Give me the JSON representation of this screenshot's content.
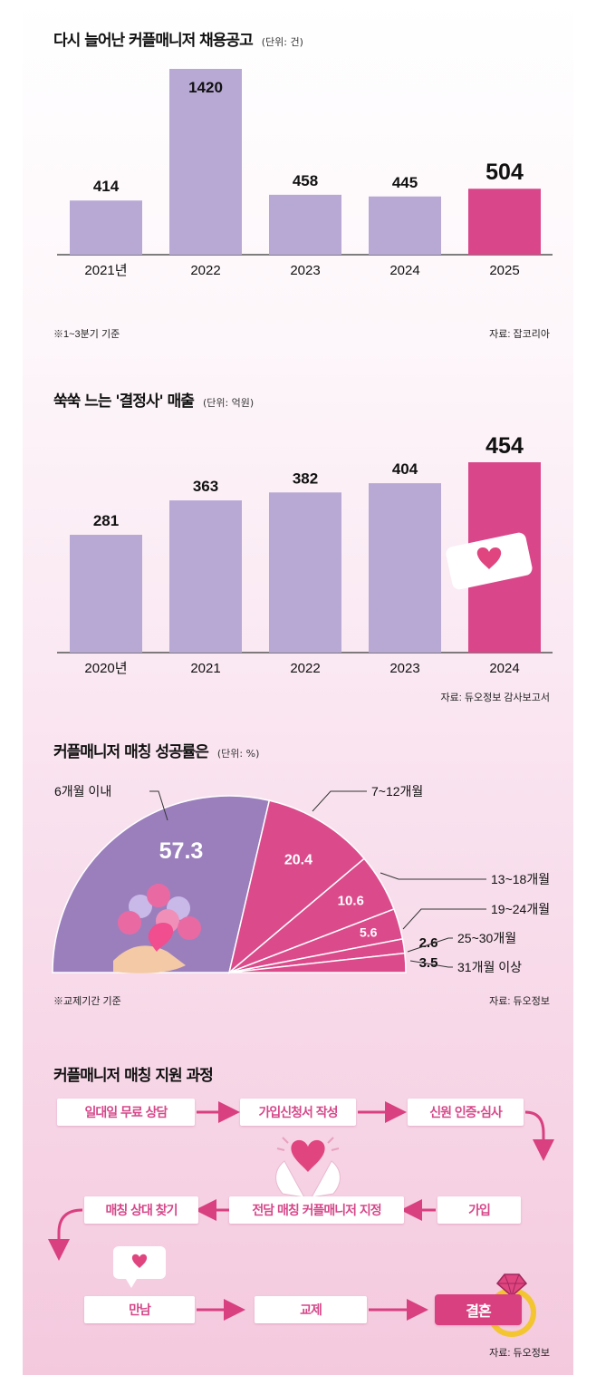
{
  "charts": [
    {
      "title": "다시 늘어난 커플매니저 채용공고",
      "unit": "(단위: 건)",
      "note_left": "※1~3분기 기준",
      "source": "자료: 잡코리아",
      "chart_data": {
        "type": "bar",
        "categories": [
          "2021년",
          "2022",
          "2023",
          "2024",
          "2025"
        ],
        "values": [
          414,
          1420,
          458,
          445,
          504
        ],
        "value_labels": [
          "414",
          "1420",
          "458",
          "445",
          "504"
        ],
        "highlight_index": 4,
        "ylim": [
          0,
          1420
        ],
        "colors": {
          "bar": "#b8a9d4",
          "highlight": "#d9478a"
        }
      }
    },
    {
      "title": "쑥쑥 느는 '결정사' 매출",
      "unit": "(단위: 억원)",
      "source": "자료: 듀오정보 감사보고서",
      "chart_data": {
        "type": "bar",
        "categories": [
          "2020년",
          "2021",
          "2022",
          "2023",
          "2024"
        ],
        "values": [
          281,
          363,
          382,
          404,
          454
        ],
        "value_labels": [
          "281",
          "363",
          "382",
          "404",
          "454"
        ],
        "highlight_index": 4,
        "ylim": [
          0,
          454
        ],
        "colors": {
          "bar": "#b8a9d4",
          "highlight": "#d9478a"
        }
      }
    },
    {
      "title": "커플매니저 매칭 성공률은",
      "unit": "(단위: %)",
      "note_left": "※교제기간 기준",
      "source": "자료: 듀오정보",
      "chart_data": {
        "type": "pie",
        "categories": [
          "6개월 이내",
          "7~12개월",
          "13~18개월",
          "19~24개월",
          "25~30개월",
          "31개월 이상"
        ],
        "values": [
          57.3,
          20.4,
          10.6,
          5.6,
          2.6,
          3.5
        ],
        "value_labels": [
          "57.3",
          "20.4",
          "10.6",
          "5.6",
          "2.6",
          "3.5"
        ],
        "colors": {
          "first": "#9b7fbd",
          "rest": "#db4b8c"
        }
      }
    }
  ],
  "process": {
    "title": "커플매니저 매칭 지원 과정",
    "steps": [
      "일대일 무료 상담",
      "가입신청서 작성",
      "신원 인증·심사",
      "가입",
      "전담 매칭 커플매니저 지정",
      "매칭 상대 찾기",
      "만남",
      "교제",
      "결혼"
    ],
    "source": "자료: 듀오정보"
  }
}
